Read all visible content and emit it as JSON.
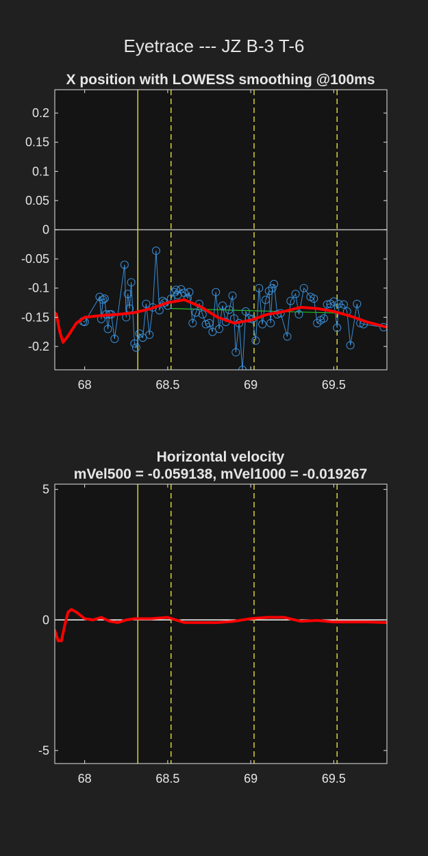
{
  "figure_title": "Eyetrace --- JZ B-3 T-6",
  "colors": {
    "background": "#202020",
    "axes_background": "#141414",
    "smooth_line": "#ff0000",
    "samples": "#3a8fd8",
    "fit_line": "#22c322",
    "event_line": "#d9d43a",
    "zero_line": "#bdbdbd"
  },
  "chart_data": [
    {
      "type": "line",
      "title": "X position with LOWESS smoothing @100ms",
      "xlim": [
        67.82,
        69.82
      ],
      "ylim": [
        -0.24,
        0.24
      ],
      "xticks": [
        "68",
        "68.5",
        "69",
        "69.5"
      ],
      "xtick_values": [
        68,
        68.5,
        69,
        69.5
      ],
      "yticks": [
        "0.2",
        "0.15",
        "0.1",
        "0.05",
        "0",
        "-0.05",
        "-0.1",
        "-0.15",
        "-0.2"
      ],
      "ytick_values": [
        0.2,
        0.15,
        0.1,
        0.05,
        0,
        -0.05,
        -0.1,
        -0.15,
        -0.2
      ],
      "event_lines": [
        {
          "x": 68.32,
          "style": "solid"
        },
        {
          "x": 68.52,
          "style": "dashed"
        },
        {
          "x": 69.02,
          "style": "dashed"
        },
        {
          "x": 69.52,
          "style": "dashed"
        }
      ],
      "zero_line": 0,
      "series": [
        {
          "style": "red-smooth",
          "x": [
            67.82,
            67.83,
            67.85,
            67.87,
            67.9,
            67.95,
            68.0,
            68.1,
            68.2,
            68.3,
            68.4,
            68.5,
            68.6,
            68.7,
            68.8,
            68.9,
            69.0,
            69.1,
            69.2,
            69.3,
            69.4,
            69.5,
            69.6,
            69.7,
            69.82
          ],
          "values": [
            -0.142,
            -0.145,
            -0.175,
            -0.193,
            -0.182,
            -0.16,
            -0.15,
            -0.147,
            -0.145,
            -0.142,
            -0.135,
            -0.125,
            -0.12,
            -0.132,
            -0.15,
            -0.16,
            -0.155,
            -0.145,
            -0.14,
            -0.133,
            -0.135,
            -0.14,
            -0.148,
            -0.158,
            -0.167
          ]
        },
        {
          "style": "green-fit",
          "x": [
            68.52,
            69.55
          ],
          "values": [
            -0.135,
            -0.143
          ]
        },
        {
          "style": "blue-samples",
          "x": [
            67.99,
            68.0,
            68.09,
            68.1,
            68.11,
            68.12,
            68.13,
            68.14,
            68.15,
            68.16,
            68.18,
            68.24,
            68.25,
            68.26,
            68.27,
            68.28,
            68.3,
            68.31,
            68.33,
            68.35,
            68.37,
            68.39,
            68.41,
            68.43,
            68.45,
            68.47,
            68.48,
            68.5,
            68.52,
            68.54,
            68.55,
            68.56,
            68.58,
            68.6,
            68.62,
            68.63,
            68.65,
            68.67,
            68.69,
            68.71,
            68.73,
            68.75,
            68.77,
            68.79,
            68.81,
            68.83,
            68.85,
            68.87,
            68.89,
            68.9,
            68.91,
            68.93,
            68.95,
            68.97,
            68.99,
            69.01,
            69.03,
            69.05,
            69.07,
            69.09,
            69.11,
            69.12,
            69.13,
            69.14,
            69.16,
            69.18,
            69.22,
            69.24,
            69.27,
            69.29,
            69.32,
            69.36,
            69.38,
            69.4,
            69.42,
            69.44,
            69.46,
            69.48,
            69.5,
            69.52,
            69.53,
            69.56,
            69.58,
            69.6,
            69.64,
            69.66,
            69.68,
            69.8
          ],
          "values": [
            -0.157,
            -0.158,
            -0.115,
            -0.153,
            -0.12,
            -0.118,
            -0.145,
            -0.17,
            -0.145,
            -0.145,
            -0.187,
            -0.06,
            -0.15,
            -0.11,
            -0.135,
            -0.09,
            -0.195,
            -0.202,
            -0.178,
            -0.185,
            -0.127,
            -0.18,
            -0.133,
            -0.036,
            -0.138,
            -0.122,
            -0.125,
            -0.13,
            -0.118,
            -0.107,
            -0.103,
            -0.112,
            -0.102,
            -0.108,
            -0.117,
            -0.107,
            -0.16,
            -0.142,
            -0.127,
            -0.145,
            -0.162,
            -0.16,
            -0.175,
            -0.107,
            -0.17,
            -0.13,
            -0.158,
            -0.137,
            -0.113,
            -0.152,
            -0.21,
            -0.16,
            -0.24,
            -0.14,
            -0.152,
            -0.153,
            -0.19,
            -0.1,
            -0.162,
            -0.12,
            -0.105,
            -0.16,
            -0.1,
            -0.093,
            -0.145,
            -0.143,
            -0.183,
            -0.122,
            -0.11,
            -0.145,
            -0.1,
            -0.115,
            -0.118,
            -0.16,
            -0.155,
            -0.152,
            -0.128,
            -0.127,
            -0.123,
            -0.168,
            -0.127,
            -0.128,
            -0.14,
            -0.198,
            -0.127,
            -0.16,
            -0.162,
            -0.167
          ]
        }
      ]
    },
    {
      "type": "line",
      "title": "Horizontal velocity",
      "subtitle": "mVel500 = -0.059138, mVel1000 = -0.019267",
      "xlim": [
        67.82,
        69.82
      ],
      "ylim": [
        -5.5,
        5.2
      ],
      "xticks": [
        "68",
        "68.5",
        "69",
        "69.5"
      ],
      "xtick_values": [
        68,
        68.5,
        69,
        69.5
      ],
      "yticks": [
        "5",
        "0",
        "-5"
      ],
      "ytick_values": [
        5,
        0,
        -5
      ],
      "event_lines": [
        {
          "x": 68.32,
          "style": "solid"
        },
        {
          "x": 68.52,
          "style": "dashed"
        },
        {
          "x": 69.02,
          "style": "dashed"
        },
        {
          "x": 69.52,
          "style": "dashed"
        }
      ],
      "zero_line": 0,
      "series": [
        {
          "style": "red-smooth",
          "x": [
            67.82,
            67.84,
            67.86,
            67.88,
            67.9,
            67.92,
            67.95,
            68.0,
            68.05,
            68.1,
            68.15,
            68.2,
            68.25,
            68.3,
            68.4,
            68.5,
            68.55,
            68.6,
            68.7,
            68.8,
            68.9,
            69.0,
            69.1,
            69.2,
            69.3,
            69.4,
            69.5,
            69.6,
            69.7,
            69.82
          ],
          "values": [
            -0.4,
            -0.8,
            -0.8,
            -0.2,
            0.3,
            0.4,
            0.3,
            0.05,
            0.0,
            0.1,
            -0.05,
            -0.1,
            0.0,
            0.05,
            0.05,
            0.1,
            0.0,
            -0.1,
            -0.1,
            -0.1,
            -0.05,
            0.05,
            0.1,
            0.1,
            -0.05,
            -0.02,
            -0.08,
            -0.08,
            -0.08,
            -0.1
          ]
        }
      ]
    }
  ]
}
